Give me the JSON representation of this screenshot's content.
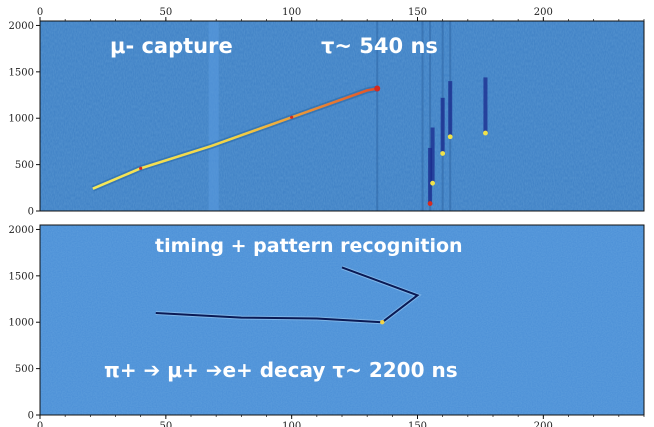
{
  "chart_data": [
    {
      "type": "heatmap",
      "title": "",
      "xlabel": "",
      "ylabel": "",
      "xlim": [
        0,
        240
      ],
      "ylim": [
        0,
        2048
      ],
      "x_ticks": [
        0,
        50,
        100,
        150,
        200
      ],
      "x_tick_position": "top",
      "y_ticks": [
        0,
        500,
        1000,
        1500,
        2000
      ],
      "annotations": [
        "μ- capture",
        "τ~ 540 ns"
      ],
      "colors": {
        "background": "#3d7fc4",
        "track": "#f0e24a",
        "hot": "#d62a1f",
        "low": "#1a2a8c"
      },
      "tracks": [
        {
          "name": "muon track",
          "points": [
            [
              21,
              240
            ],
            [
              40,
              460
            ],
            [
              68,
              700
            ],
            [
              100,
              1010
            ],
            [
              130,
              1300
            ],
            [
              134,
              1320
            ]
          ]
        },
        {
          "name": "decay tracks",
          "points": [
            [
              155,
              80
            ],
            [
              156,
              300
            ],
            [
              160,
              620
            ],
            [
              163,
              800
            ],
            [
              177,
              840
            ]
          ]
        }
      ]
    },
    {
      "type": "heatmap",
      "title": "",
      "xlabel": "",
      "ylabel": "",
      "xlim": [
        0,
        240
      ],
      "ylim": [
        0,
        2048
      ],
      "x_ticks": [
        0,
        50,
        100,
        150,
        200
      ],
      "x_tick_position": "bottom",
      "y_ticks": [
        0,
        500,
        1000,
        1500,
        2000
      ],
      "annotations": [
        "timing + pattern recognition",
        "π+ ➔ μ+ ➔e+ decay  τ~ 2200 ns"
      ],
      "colors": {
        "background": "#4a8ed6",
        "track": "#0a1a55"
      },
      "tracks": [
        {
          "name": "pion-muon track",
          "points": [
            [
              46,
              1100
            ],
            [
              80,
              1050
            ],
            [
              110,
              1040
            ],
            [
              136,
              1000
            ],
            [
              150,
              1290
            ],
            [
              120,
              1590
            ]
          ]
        }
      ]
    }
  ]
}
